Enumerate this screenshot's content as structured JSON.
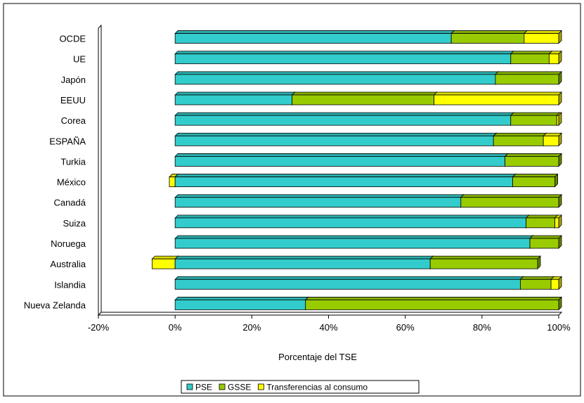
{
  "chart_data": {
    "type": "bar",
    "orientation": "horizontal",
    "stacked": true,
    "style": "3d",
    "categories": [
      "OCDE",
      "UE",
      "Japón",
      "EEUU",
      "Corea",
      "ESPAÑA",
      "Turkia",
      "México",
      "Canadá",
      "Suiza",
      "Noruega",
      "Australia",
      "Islandia",
      "Nueva Zelanda"
    ],
    "series": [
      {
        "name": "PSE",
        "color": "#33CCCC",
        "values": [
          72,
          87.5,
          83.5,
          30.5,
          87.5,
          83,
          86,
          88,
          74.5,
          91.5,
          92.5,
          66.5,
          90,
          34
        ]
      },
      {
        "name": "GSSE",
        "color": "#99CC00",
        "values": [
          19,
          10,
          16.5,
          37,
          12,
          13,
          14,
          11,
          25.5,
          7.5,
          7.5,
          28,
          8,
          66
        ]
      },
      {
        "name": "Transferencias al consumo",
        "color": "#FFFF00",
        "values": [
          9,
          2.5,
          0,
          32.5,
          0.5,
          4,
          0,
          -1.5,
          0,
          1,
          0,
          -6,
          2,
          0
        ]
      }
    ],
    "xlabel": "Porcentaje del TSE",
    "xticks": [
      "-20%",
      "0%",
      "20%",
      "40%",
      "60%",
      "80%",
      "100%"
    ],
    "xlim": [
      -20,
      100
    ],
    "grid": false,
    "legend_position": "bottom"
  }
}
